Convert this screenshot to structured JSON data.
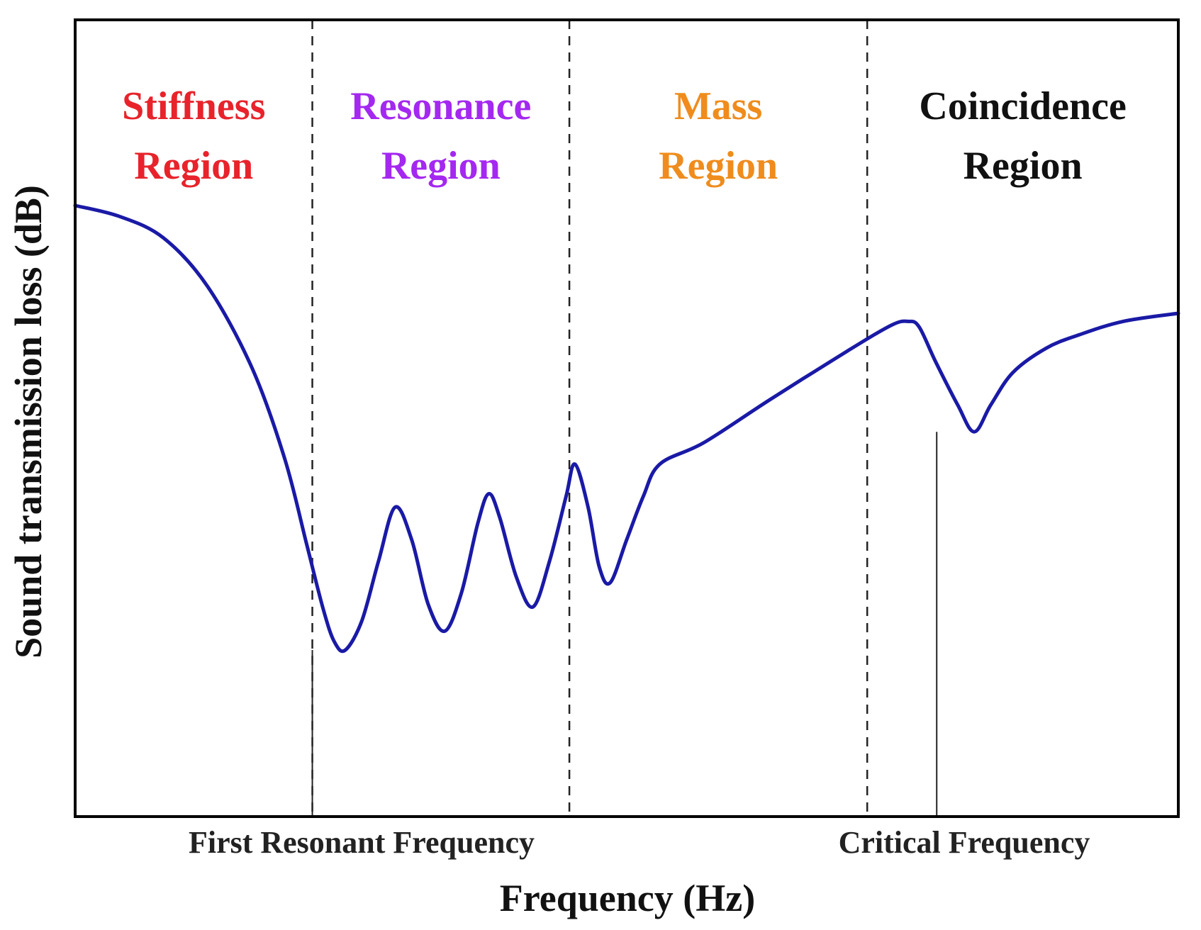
{
  "chart_data": {
    "type": "line",
    "title": "",
    "xlabel": "Frequency (Hz)",
    "ylabel": "Sound transmission loss (dB)",
    "x_scale": "qualitative",
    "y_scale": "qualitative",
    "xlim": [
      0,
      100
    ],
    "ylim": [
      0,
      100
    ],
    "grid": false,
    "legend": "none",
    "series": [
      {
        "color": "#1a1aa6",
        "points": [
          [
            0,
            100
          ],
          [
            4,
            98
          ],
          [
            8,
            94
          ],
          [
            12,
            85
          ],
          [
            16,
            70
          ],
          [
            19,
            53
          ],
          [
            21,
            37
          ],
          [
            22.5,
            25
          ],
          [
            23.5,
            19
          ],
          [
            24.5,
            17.5
          ],
          [
            26,
            23
          ],
          [
            27.5,
            34
          ],
          [
            29,
            44
          ],
          [
            30.5,
            38
          ],
          [
            32,
            26
          ],
          [
            33.5,
            21
          ],
          [
            35,
            28
          ],
          [
            36.5,
            41
          ],
          [
            37.5,
            46.5
          ],
          [
            38.5,
            42
          ],
          [
            40,
            31
          ],
          [
            41.5,
            25.5
          ],
          [
            43,
            34
          ],
          [
            44.5,
            46
          ],
          [
            45.3,
            52
          ],
          [
            46.5,
            44
          ],
          [
            47.5,
            33
          ],
          [
            48.5,
            30
          ],
          [
            50,
            38
          ],
          [
            51.5,
            46
          ],
          [
            53,
            52
          ],
          [
            57,
            56
          ],
          [
            63,
            64
          ],
          [
            70,
            73
          ],
          [
            74,
            77.8
          ],
          [
            75.5,
            78.5
          ],
          [
            76.5,
            77.5
          ],
          [
            78,
            71
          ],
          [
            80,
            63
          ],
          [
            81.5,
            58
          ],
          [
            83,
            63
          ],
          [
            85,
            69
          ],
          [
            88,
            73.5
          ],
          [
            91,
            76
          ],
          [
            95,
            78.5
          ],
          [
            100,
            80
          ]
        ]
      }
    ],
    "region_boundaries": [
      21.5,
      44.8,
      71.8
    ],
    "regions": [
      {
        "line1": "Stiffness",
        "line2": "Region",
        "color": "#e8232b"
      },
      {
        "line1": "Resonance",
        "line2": "Region",
        "color": "#a428f0"
      },
      {
        "line1": "Mass",
        "line2": "Region",
        "color": "#ef8c1d"
      },
      {
        "line1": "Coincidence",
        "line2": "Region",
        "color": "#111111"
      }
    ],
    "annotations": [
      {
        "label": "First Resonant Frequency",
        "x": 21.5,
        "marker_y": 17.5
      },
      {
        "label": "Critical Frequency",
        "x": 78.1,
        "marker_y": 58
      }
    ]
  }
}
